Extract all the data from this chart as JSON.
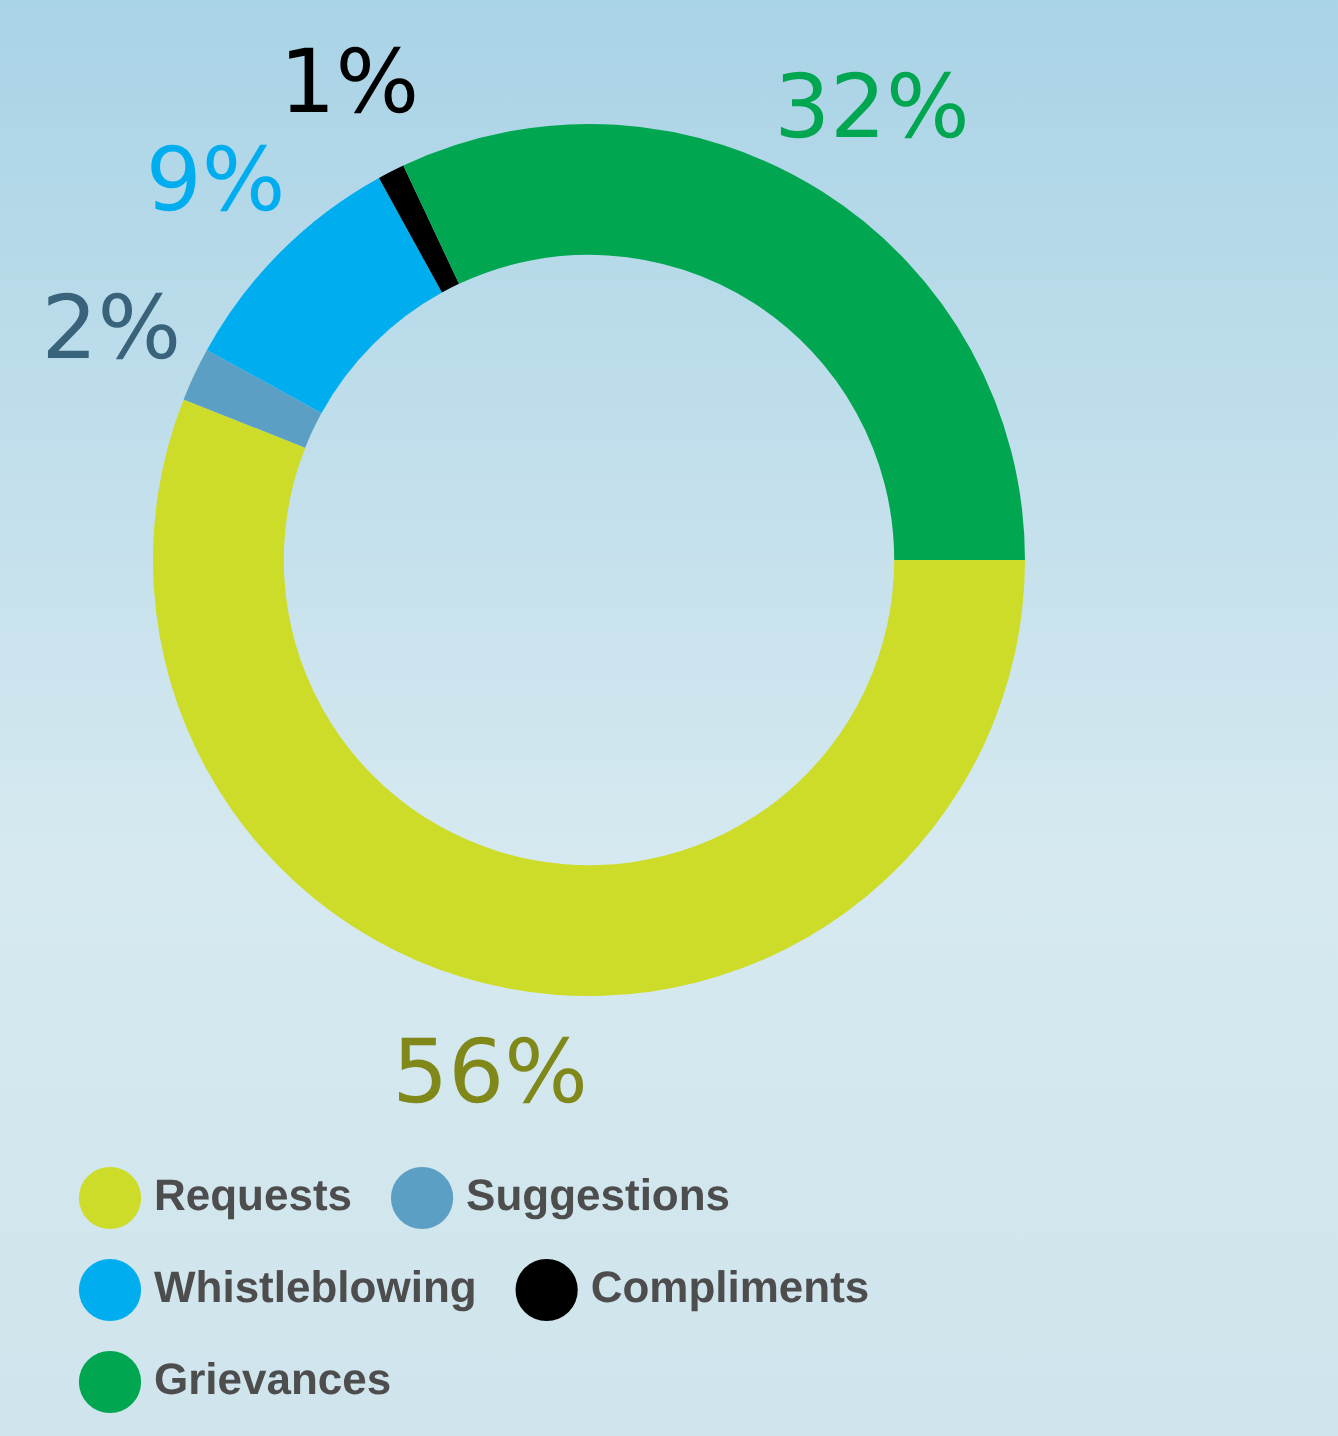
{
  "chart_data": {
    "type": "donut",
    "categories": [
      "Requests",
      "Suggestions",
      "Whistleblowing",
      "Compliments",
      "Grievances"
    ],
    "values": [
      56,
      2,
      9,
      1,
      32
    ],
    "colors": [
      "#cddc29",
      "#5b9fc4",
      "#00aeef",
      "#000000",
      "#00a650"
    ],
    "value_labels": [
      "56%",
      "2%",
      "9%",
      "1%",
      "32%"
    ],
    "legend": "bottom"
  }
}
